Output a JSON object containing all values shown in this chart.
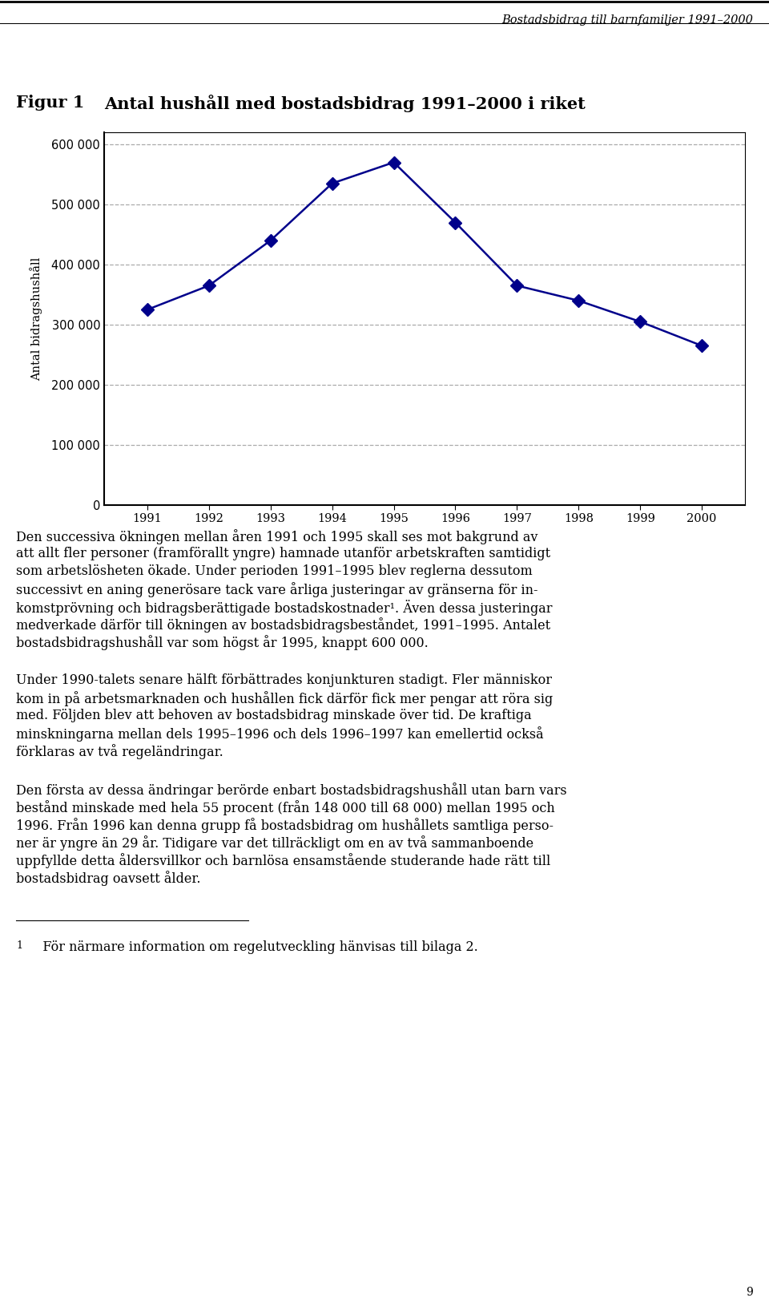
{
  "header_title": "Bostadsbidrag till barnfamiljer 1991–2000",
  "fig_label": "Figur 1",
  "fig_title": "Antal hushåll med bostadsbidrag 1991–2000 i riket",
  "years": [
    1991,
    1992,
    1993,
    1994,
    1995,
    1996,
    1997,
    1998,
    1999,
    2000
  ],
  "values": [
    325000,
    365000,
    440000,
    535000,
    570000,
    470000,
    365000,
    340000,
    305000,
    265000
  ],
  "ylabel": "Antal bidragshushåll",
  "ylim": [
    0,
    620000
  ],
  "yticks": [
    0,
    100000,
    200000,
    300000,
    400000,
    500000,
    600000
  ],
  "line_color": "#00008B",
  "marker_color": "#00008B",
  "grid_color": "#aaaaaa",
  "background_color": "#ffffff",
  "text_color": "#000000",
  "p1_lines": [
    "Den successiva ökningen mellan åren 1991 och 1995 skall ses mot bakgrund av",
    "att allt fler personer (framförallt yngre) hamnade utanför arbetskraften samtidigt",
    "som arbetslösheten ökade. Under perioden 1991–1995 blev reglerna dessutom",
    "successivt en aning generösare tack vare årliga justeringar av gränserna för in-",
    "komstprövning och bidragsberättigade bostadskostnader¹. Även dessa justeringar",
    "medverkade därför till ökningen av bostadsbidragsbeståndet, 1991–1995. Antalet",
    "bostadsbidragshushåll var som högst år 1995, knappt 600 000."
  ],
  "p2_lines": [
    "Under 1990-talets senare hälft förbättrades konjunkturen stadigt. Fler människor",
    "kom in på arbetsmarknaden och hushållen fick därför fick mer pengar att röra sig",
    "med. Följden blev att behoven av bostadsbidrag minskade över tid. De kraftiga",
    "minskningarna mellan dels 1995–1996 och dels 1996–1997 kan emellertid också",
    "förklaras av två regeländringar."
  ],
  "p3_lines": [
    "Den första av dessa ändringar berörde enbart bostadsbidragshushåll utan barn vars",
    "bestånd minskade med hela 55 procent (från 148 000 till 68 000) mellan 1995 och",
    "1996. Från 1996 kan denna grupp få bostadsbidrag om hushållets samtliga perso-",
    "ner är yngre än 29 år. Tidigare var det tillräckligt om en av två sammanboende",
    "uppfyllde detta åldersvillkor och barnlösa ensamstående studerande hade rätt till",
    "bostadsbidrag oavsett ålder."
  ],
  "footnote_superscript": "1",
  "footnote_text": "   För närmare information om regelutveckling hänvisas till bilaga 2.",
  "page_number": "9"
}
